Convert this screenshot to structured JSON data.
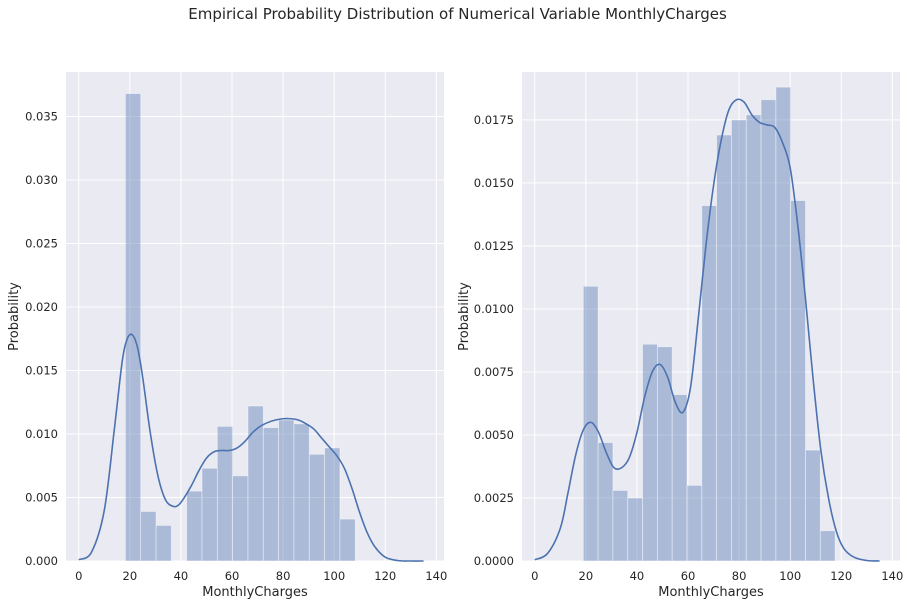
{
  "suptitle": "Empirical Probability Distribution of Numerical Variable MonthlyCharges",
  "colors": {
    "background": "#EAEAF2",
    "grid": "#ffffff",
    "bar": "#4C72B0",
    "kde": "#4C72B0"
  },
  "chart_data": [
    {
      "type": "bar",
      "subtype": "histogram-with-kde",
      "xlabel": "MonthlyCharges",
      "ylabel": "Probability",
      "xlim": [
        -5,
        143
      ],
      "ylim": [
        0,
        0.0385
      ],
      "xticks": [
        0,
        20,
        40,
        60,
        80,
        100,
        120,
        140
      ],
      "yticks": [
        "0.000",
        "0.005",
        "0.010",
        "0.015",
        "0.020",
        "0.025",
        "0.030",
        "0.035"
      ],
      "bins": [
        {
          "x0": 18.25,
          "x1": 24.25,
          "value": 0.0368
        },
        {
          "x0": 24.25,
          "x1": 30.25,
          "value": 0.0039
        },
        {
          "x0": 30.25,
          "x1": 36.25,
          "value": 0.0028
        },
        {
          "x0": 36.25,
          "x1": 42.25,
          "value": 0.0
        },
        {
          "x0": 42.25,
          "x1": 48.25,
          "value": 0.0055
        },
        {
          "x0": 48.25,
          "x1": 54.25,
          "value": 0.0073
        },
        {
          "x0": 54.25,
          "x1": 60.25,
          "value": 0.0106
        },
        {
          "x0": 60.25,
          "x1": 66.25,
          "value": 0.0067
        },
        {
          "x0": 66.25,
          "x1": 72.25,
          "value": 0.0122
        },
        {
          "x0": 72.25,
          "x1": 78.25,
          "value": 0.0105
        },
        {
          "x0": 78.25,
          "x1": 84.25,
          "value": 0.0111
        },
        {
          "x0": 84.25,
          "x1": 90.25,
          "value": 0.0108
        },
        {
          "x0": 90.25,
          "x1": 96.25,
          "value": 0.0084
        },
        {
          "x0": 96.25,
          "x1": 102.25,
          "value": 0.0089
        },
        {
          "x0": 102.25,
          "x1": 108.25,
          "value": 0.0033
        },
        {
          "x0": 108.25,
          "x1": 114.25,
          "value": 0.0
        }
      ],
      "kde": {
        "x": [
          0,
          5,
          10,
          14,
          17,
          19,
          21,
          23,
          25,
          28,
          31,
          34,
          37,
          39,
          41,
          44,
          47,
          50,
          53,
          56,
          59,
          62,
          65,
          68,
          71,
          74,
          77,
          80,
          83,
          86,
          89,
          92,
          95,
          98,
          101,
          104,
          107,
          110,
          113,
          116,
          120,
          125,
          130,
          135
        ],
        "y": [
          0.0001,
          0.0007,
          0.004,
          0.0105,
          0.0157,
          0.0175,
          0.0178,
          0.0168,
          0.0145,
          0.0101,
          0.0067,
          0.0048,
          0.0043,
          0.0044,
          0.0049,
          0.0059,
          0.0071,
          0.0081,
          0.0086,
          0.0087,
          0.0087,
          0.0089,
          0.0094,
          0.0101,
          0.0106,
          0.0109,
          0.0111,
          0.0112,
          0.0112,
          0.0111,
          0.0108,
          0.0104,
          0.0097,
          0.009,
          0.0083,
          0.0073,
          0.0057,
          0.0038,
          0.0022,
          0.0011,
          0.0003,
          3e-05,
          0.0,
          0.0
        ]
      }
    },
    {
      "type": "bar",
      "subtype": "histogram-with-kde",
      "xlabel": "MonthlyCharges",
      "ylabel": "Probability",
      "xlim": [
        -5,
        143
      ],
      "ylim": [
        0,
        0.0194
      ],
      "xticks": [
        0,
        20,
        40,
        60,
        80,
        100,
        120,
        140
      ],
      "yticks": [
        "0.0000",
        "0.0025",
        "0.0050",
        "0.0075",
        "0.0100",
        "0.0125",
        "0.0150",
        "0.0175"
      ],
      "bins": [
        {
          "x0": 19.0,
          "x1": 24.8,
          "value": 0.0109
        },
        {
          "x0": 24.8,
          "x1": 30.6,
          "value": 0.0047
        },
        {
          "x0": 30.6,
          "x1": 36.4,
          "value": 0.0028
        },
        {
          "x0": 36.4,
          "x1": 42.2,
          "value": 0.0025
        },
        {
          "x0": 42.2,
          "x1": 48.0,
          "value": 0.0086
        },
        {
          "x0": 48.0,
          "x1": 53.8,
          "value": 0.0085
        },
        {
          "x0": 53.8,
          "x1": 59.6,
          "value": 0.0066
        },
        {
          "x0": 59.6,
          "x1": 65.4,
          "value": 0.003
        },
        {
          "x0": 65.4,
          "x1": 71.2,
          "value": 0.0141
        },
        {
          "x0": 71.2,
          "x1": 77.0,
          "value": 0.0169
        },
        {
          "x0": 77.0,
          "x1": 82.8,
          "value": 0.0175
        },
        {
          "x0": 82.8,
          "x1": 88.6,
          "value": 0.0177
        },
        {
          "x0": 88.6,
          "x1": 94.4,
          "value": 0.0183
        },
        {
          "x0": 94.4,
          "x1": 100.2,
          "value": 0.0188
        },
        {
          "x0": 100.2,
          "x1": 106.0,
          "value": 0.0143
        },
        {
          "x0": 106.0,
          "x1": 111.8,
          "value": 0.0044
        },
        {
          "x0": 111.8,
          "x1": 117.6,
          "value": 0.0012
        }
      ],
      "kde": {
        "x": [
          0,
          5,
          10,
          13,
          16,
          19,
          22,
          25,
          28,
          31,
          34,
          37,
          40,
          43,
          46,
          49,
          52,
          55,
          58,
          61,
          64,
          67,
          70,
          73,
          76,
          79,
          82,
          85,
          88,
          91,
          94,
          97,
          100,
          103,
          106,
          109,
          112,
          115,
          118,
          121,
          125,
          130,
          135
        ],
        "y": [
          5e-05,
          0.0003,
          0.0013,
          0.0027,
          0.0042,
          0.0052,
          0.0055,
          0.0051,
          0.0043,
          0.0037,
          0.0037,
          0.0041,
          0.0051,
          0.0065,
          0.0075,
          0.0078,
          0.0073,
          0.0063,
          0.0059,
          0.0069,
          0.0096,
          0.0125,
          0.0149,
          0.0167,
          0.0179,
          0.0183,
          0.0182,
          0.0177,
          0.0174,
          0.0173,
          0.0172,
          0.0166,
          0.0156,
          0.0133,
          0.0104,
          0.0072,
          0.0044,
          0.0025,
          0.0012,
          0.0005,
          0.00015,
          2e-05,
          0.0
        ]
      }
    }
  ]
}
